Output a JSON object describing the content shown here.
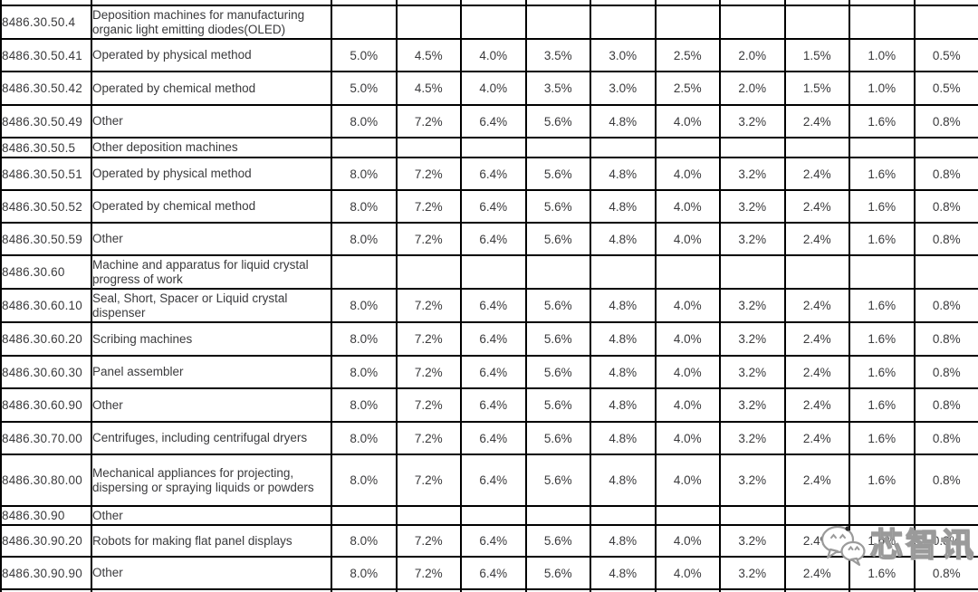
{
  "page": {
    "background": "#ffffff"
  },
  "table": {
    "border_color": "#000000",
    "text_color": "#3a3a3c",
    "rows": [
      {
        "code": "8486.30.50.4",
        "desc": "Deposition machines for manufacturing organic light emitting diodes(OLED)",
        "rates": []
      },
      {
        "code": "8486.30.50.41",
        "desc": "Operated by physical method",
        "rates": [
          "5.0%",
          "4.5%",
          "4.0%",
          "3.5%",
          "3.0%",
          "2.5%",
          "2.0%",
          "1.5%",
          "1.0%",
          "0.5%"
        ]
      },
      {
        "code": "8486.30.50.42",
        "desc": "Operated by chemical method",
        "rates": [
          "5.0%",
          "4.5%",
          "4.0%",
          "3.5%",
          "3.0%",
          "2.5%",
          "2.0%",
          "1.5%",
          "1.0%",
          "0.5%"
        ]
      },
      {
        "code": "8486.30.50.49",
        "desc": "Other",
        "rates": [
          "8.0%",
          "7.2%",
          "6.4%",
          "5.6%",
          "4.8%",
          "4.0%",
          "3.2%",
          "2.4%",
          "1.6%",
          "0.8%"
        ]
      },
      {
        "code": "8486.30.50.5",
        "desc": "Other deposition machines",
        "rates": []
      },
      {
        "code": "8486.30.50.51",
        "desc": "Operated by physical method",
        "rates": [
          "8.0%",
          "7.2%",
          "6.4%",
          "5.6%",
          "4.8%",
          "4.0%",
          "3.2%",
          "2.4%",
          "1.6%",
          "0.8%"
        ]
      },
      {
        "code": "8486.30.50.52",
        "desc": "Operated by chemical method",
        "rates": [
          "8.0%",
          "7.2%",
          "6.4%",
          "5.6%",
          "4.8%",
          "4.0%",
          "3.2%",
          "2.4%",
          "1.6%",
          "0.8%"
        ]
      },
      {
        "code": "8486.30.50.59",
        "desc": "Other",
        "rates": [
          "8.0%",
          "7.2%",
          "6.4%",
          "5.6%",
          "4.8%",
          "4.0%",
          "3.2%",
          "2.4%",
          "1.6%",
          "0.8%"
        ]
      },
      {
        "code": "8486.30.60",
        "desc": "Machine and apparatus for liquid crystal progress of work",
        "rates": []
      },
      {
        "code": "8486.30.60.10",
        "desc": "Seal, Short, Spacer or Liquid crystal dispenser",
        "rates": [
          "8.0%",
          "7.2%",
          "6.4%",
          "5.6%",
          "4.8%",
          "4.0%",
          "3.2%",
          "2.4%",
          "1.6%",
          "0.8%"
        ]
      },
      {
        "code": "8486.30.60.20",
        "desc": "Scribing machines",
        "rates": [
          "8.0%",
          "7.2%",
          "6.4%",
          "5.6%",
          "4.8%",
          "4.0%",
          "3.2%",
          "2.4%",
          "1.6%",
          "0.8%"
        ]
      },
      {
        "code": "8486.30.60.30",
        "desc": "Panel assembler",
        "rates": [
          "8.0%",
          "7.2%",
          "6.4%",
          "5.6%",
          "4.8%",
          "4.0%",
          "3.2%",
          "2.4%",
          "1.6%",
          "0.8%"
        ]
      },
      {
        "code": "8486.30.60.90",
        "desc": "Other",
        "rates": [
          "8.0%",
          "7.2%",
          "6.4%",
          "5.6%",
          "4.8%",
          "4.0%",
          "3.2%",
          "2.4%",
          "1.6%",
          "0.8%"
        ]
      },
      {
        "code": "8486.30.70.00",
        "desc": "Centrifuges, including centrifugal dryers",
        "rates": [
          "8.0%",
          "7.2%",
          "6.4%",
          "5.6%",
          "4.8%",
          "4.0%",
          "3.2%",
          "2.4%",
          "1.6%",
          "0.8%"
        ]
      },
      {
        "code": "8486.30.80.00",
        "desc": "Mechanical appliances for projecting, dispersing or spraying liquids or powders",
        "rates": [
          "8.0%",
          "7.2%",
          "6.4%",
          "5.6%",
          "4.8%",
          "4.0%",
          "3.2%",
          "2.4%",
          "1.6%",
          "0.8%"
        ]
      },
      {
        "code": "8486.30.90",
        "desc": "Other",
        "rates": []
      },
      {
        "code": "8486.30.90.20",
        "desc": "Robots for making flat panel displays",
        "rates": [
          "8.0%",
          "7.2%",
          "6.4%",
          "5.6%",
          "4.8%",
          "4.0%",
          "3.2%",
          "2.4%",
          "1.6%",
          "0.8%"
        ]
      },
      {
        "code": "8486.30.90.90",
        "desc": "Other",
        "rates": [
          "8.0%",
          "7.2%",
          "6.4%",
          "5.6%",
          "4.8%",
          "4.0%",
          "3.2%",
          "2.4%",
          "1.6%",
          "0.8%"
        ]
      }
    ]
  },
  "watermark": {
    "icon": "wechat-icon",
    "label": "芯智讯",
    "fill": "#ffffff",
    "outline": "#9a9a9a"
  }
}
